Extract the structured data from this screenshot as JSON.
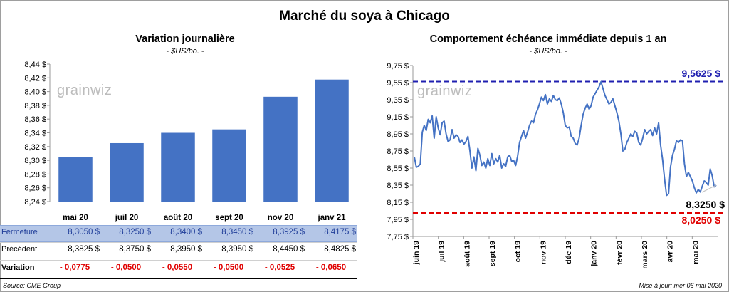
{
  "title": "Marché du soya à Chicago",
  "left": {
    "subtitle": "Variation journalière",
    "unit": "- $US/bo. -",
    "watermark": "grainwiz",
    "chart_data": {
      "type": "bar",
      "categories": [
        "mai 20",
        "juil 20",
        "août 20",
        "sept 20",
        "nov 20",
        "janv 21"
      ],
      "values": [
        8.305,
        8.325,
        8.34,
        8.345,
        8.3925,
        8.4175
      ],
      "ylim": [
        8.24,
        8.44
      ],
      "yticks": [
        "8,24 $",
        "8,26 $",
        "8,28 $",
        "8,30 $",
        "8,32 $",
        "8,34 $",
        "8,36 $",
        "8,38 $",
        "8,40 $",
        "8,42 $",
        "8,44 $"
      ],
      "bar_color": "#4472c4",
      "grid": false
    },
    "table": {
      "rows": [
        {
          "label": "Fermeture",
          "cells": [
            "8,3050  $",
            "8,3250  $",
            "8,3400  $",
            "8,3450  $",
            "8,3925  $",
            "8,4175  $"
          ]
        },
        {
          "label": "Précédent",
          "cells": [
            "8,3825  $",
            "8,3750  $",
            "8,3950  $",
            "8,3950  $",
            "8,4450  $",
            "8,4825  $"
          ]
        },
        {
          "label": "Variation",
          "cells": [
            "- 0,0775",
            "- 0,0500",
            "- 0,0550",
            "- 0,0500",
            "- 0,0525",
            "- 0,0650"
          ]
        }
      ],
      "colors": {
        "highlight_bg": "#b4c6e7",
        "highlight_text": "#1f3d99",
        "negative_text": "#e00000"
      }
    }
  },
  "right": {
    "subtitle": "Comportement  échéance immédiate depuis 1 an",
    "unit": "- $US/bo. -",
    "watermark": "grainwiz",
    "chart_data": {
      "type": "line",
      "ylim": [
        7.75,
        9.75
      ],
      "yticks": [
        "7,75 $",
        "7,95 $",
        "8,15 $",
        "8,35 $",
        "8,55 $",
        "8,75 $",
        "8,95 $",
        "9,15 $",
        "9,35 $",
        "9,55 $",
        "9,75 $"
      ],
      "xticks": [
        "juin 19",
        "juil 19",
        "août 19",
        "sept 19",
        "oct 19",
        "nov 19",
        "déc 19",
        "janv 20",
        "févr 20",
        "mars 20",
        "avr 20",
        "mai 20"
      ],
      "series": [
        {
          "color": "#4472c4",
          "values": [
            8.68,
            8.56,
            8.57,
            8.6,
            8.97,
            9.05,
            8.99,
            9.12,
            9.08,
            9.16,
            8.9,
            9.15,
            9.02,
            8.94,
            9.08,
            9.1,
            8.95,
            8.86,
            8.88,
            9.0,
            8.9,
            8.94,
            8.92,
            8.85,
            8.88,
            8.83,
            8.86,
            8.92,
            8.75,
            8.55,
            8.68,
            8.52,
            8.78,
            8.7,
            8.58,
            8.62,
            8.55,
            8.66,
            8.58,
            8.72,
            8.6,
            8.66,
            8.62,
            8.7,
            8.55,
            8.6,
            8.57,
            8.68,
            8.7,
            8.63,
            8.64,
            8.58,
            8.69,
            8.85,
            8.92,
            8.99,
            8.9,
            8.97,
            9.05,
            9.1,
            9.08,
            9.18,
            9.23,
            9.3,
            9.38,
            9.34,
            9.41,
            9.3,
            9.36,
            9.33,
            9.4,
            9.35,
            9.34,
            9.37,
            9.3,
            9.2,
            9.05,
            9.02,
            9.03,
            8.92,
            8.9,
            8.84,
            8.82,
            8.9,
            9.05,
            9.18,
            9.25,
            9.3,
            9.24,
            9.28,
            9.38,
            9.42,
            9.46,
            9.5,
            9.56,
            9.48,
            9.4,
            9.35,
            9.3,
            9.32,
            9.36,
            9.28,
            9.2,
            9.1,
            8.95,
            8.75,
            8.77,
            8.85,
            8.9,
            8.95,
            8.92,
            8.98,
            8.96,
            8.85,
            8.82,
            8.9,
            9.0,
            8.95,
            8.98,
            9.0,
            8.93,
            9.02,
            8.95,
            9.08,
            8.82,
            8.65,
            8.42,
            8.23,
            8.25,
            8.56,
            8.7,
            8.77,
            8.87,
            8.85,
            8.88,
            8.87,
            8.6,
            8.45,
            8.5,
            8.45,
            8.4,
            8.32,
            8.26,
            8.3,
            8.27,
            8.34,
            8.4,
            8.38,
            8.35,
            8.54,
            8.46,
            8.33,
            8.35
          ]
        }
      ],
      "reference_lines": [
        {
          "value": 9.5625,
          "label": "9,5625  $",
          "color": "#2020b0"
        },
        {
          "value": 8.025,
          "label": "8,0250  $",
          "color": "#e00000"
        }
      ],
      "last_value": {
        "value": 8.325,
        "label": "8,3250 $"
      }
    }
  },
  "footer": {
    "source": "Source: CME Group",
    "updated": "Mise à jour: mer 06 mai 2020"
  }
}
